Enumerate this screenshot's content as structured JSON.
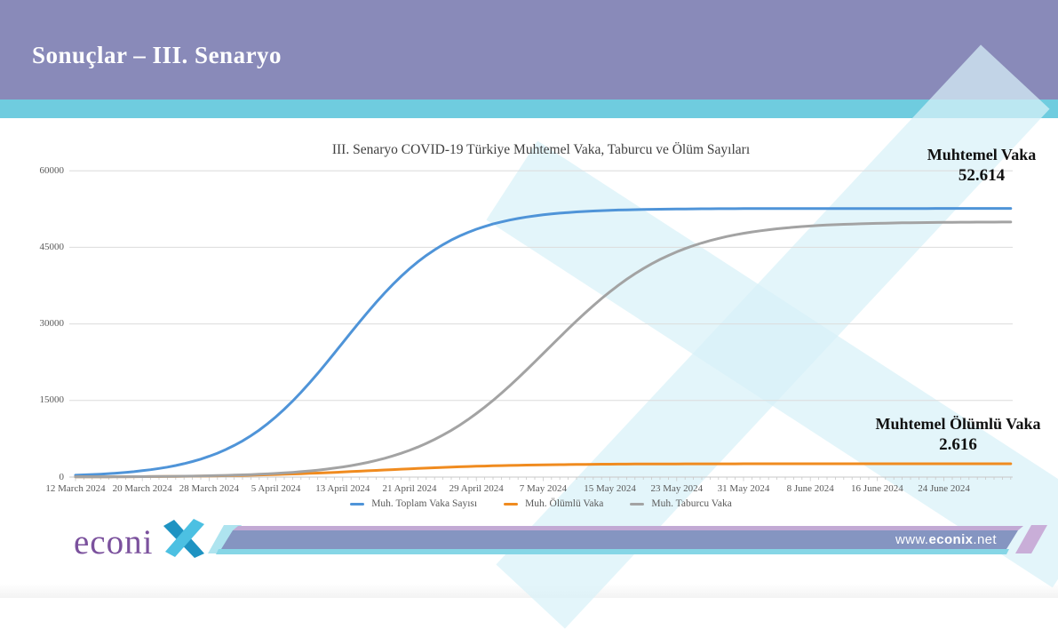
{
  "slide": {
    "header_title": "Sonuçlar – III. Senaryo",
    "footer": {
      "logo_text": "econi",
      "website_prefix": "www.",
      "website_bold": "econix",
      "website_suffix": ".net"
    }
  },
  "annotations": [
    {
      "label": "Muhtemel Vaka",
      "value": "52.614"
    },
    {
      "label": "Muhtemel Ölümlü Vaka",
      "value": "2.616"
    }
  ],
  "chart_data": {
    "type": "line",
    "title": "III. Senaryo COVID-19 Türkiye Muhtemel Vaka, Taburcu ve Ölüm  Sayıları",
    "xlabel": "",
    "ylabel": "",
    "ylim": [
      0,
      60000
    ],
    "y_ticks": [
      0,
      15000,
      30000,
      45000,
      60000
    ],
    "grid": true,
    "legend_position": "bottom",
    "x_tick_labels": [
      "12 March 2024",
      "20 March 2024",
      "28 March 2024",
      "5 April 2024",
      "13 April 2024",
      "21 April 2024",
      "29 April 2024",
      "7 May 2024",
      "15 May 2024",
      "23 May 2024",
      "31 May 2024",
      "8 June 2024",
      "16 June 2024",
      "24 June 2024"
    ],
    "x_tick_days": [
      0,
      8,
      16,
      24,
      32,
      40,
      48,
      56,
      64,
      72,
      80,
      88,
      96,
      104
    ],
    "x_range_days": [
      0,
      112
    ],
    "series": [
      {
        "name": "Muh. Toplam Vaka Sayısı",
        "color": "#4f94d8",
        "final_value": 52614,
        "values": [
          370,
          1240,
          4070,
          11810,
          26307,
          40810,
          48550,
          51370,
          52250,
          52510,
          52583,
          52605,
          52611,
          52614
        ],
        "logistic": {
          "L": 52614,
          "t0_days": 32,
          "k": 0.155
        }
      },
      {
        "name": "Muh. Ölümlü Vaka",
        "color": "#f08b1f",
        "final_value": 2616,
        "values": [
          35,
          90,
          220,
          500,
          1000,
          1615,
          2115,
          2400,
          2530,
          2580,
          2603,
          2611,
          2614,
          2616
        ],
        "logistic": {
          "L": 2616,
          "t0_days": 36,
          "k": 0.12
        }
      },
      {
        "name": "Muh. Taburcu Vaka",
        "color": "#a3a3a3",
        "final_value": 49998,
        "values": [
          30,
          90,
          260,
          720,
          1985,
          5240,
          12440,
          24190,
          36310,
          44120,
          47750,
          49180,
          49700,
          49890
        ],
        "logistic": {
          "L": 49998,
          "t0_days": 56.5,
          "k": 0.13
        }
      }
    ]
  },
  "palette": {
    "header_purple": "#898ab9",
    "teal_band": "#6fccdf",
    "watermark": "#d8f1f8",
    "gridline": "#dcdcdc",
    "axis": "#c8c8c8",
    "axis_text": "#595959",
    "title_text": "#404040",
    "annotation_text": "#101010",
    "logo_purple": "#7b519d",
    "logo_x_light": "#4cc0e2",
    "logo_x_dark": "#1e93c2",
    "bar_slate": "#8595c1",
    "bar_lavender": "#c2a9d4",
    "bar_cyan": "#86d6e6",
    "bar_wedge": "#aee4ef",
    "bar_tip": "#c9aed8"
  }
}
